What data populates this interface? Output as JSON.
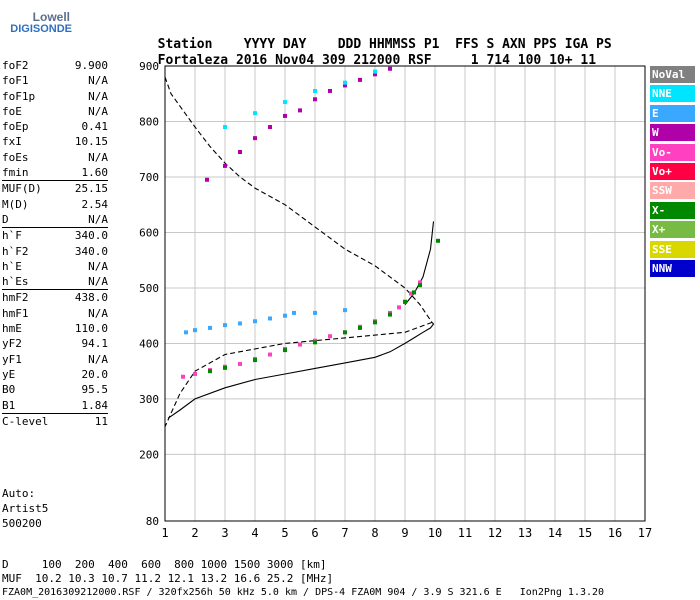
{
  "logo": {
    "line1": "Lowell",
    "line2": "DIGISONDE"
  },
  "header": {
    "labels": [
      "Station",
      "YYYY",
      "DAY",
      "DDD",
      "HHMMSS",
      "P1",
      "FFS",
      "S",
      "AXN",
      "PPS",
      "IGA",
      "PS"
    ],
    "values": [
      "Fortaleza",
      "2016",
      "Nov04",
      "309",
      "212000",
      "RSF",
      "1",
      "714",
      "100",
      "10+",
      "11"
    ]
  },
  "params": [
    {
      "label": "foF2",
      "value": "9.900"
    },
    {
      "label": "foF1",
      "value": "N/A"
    },
    {
      "label": "foF1p",
      "value": "N/A"
    },
    {
      "label": "foE",
      "value": "N/A"
    },
    {
      "label": "foEp",
      "value": "0.41"
    },
    {
      "label": "fxI",
      "value": "10.15"
    },
    {
      "label": "foEs",
      "value": "N/A"
    },
    {
      "label": "fmin",
      "value": "1.60"
    },
    {
      "label": "MUF(D)",
      "value": "25.15"
    },
    {
      "label": "M(D)",
      "value": "2.54"
    },
    {
      "label": "D",
      "value": "N/A"
    },
    {
      "label": "h`F",
      "value": "340.0"
    },
    {
      "label": "h`F2",
      "value": "340.0"
    },
    {
      "label": "h`E",
      "value": "N/A"
    },
    {
      "label": "h`Es",
      "value": "N/A"
    },
    {
      "label": "hmF2",
      "value": "438.0"
    },
    {
      "label": "hmF1",
      "value": "N/A"
    },
    {
      "label": "hmE",
      "value": "110.0"
    },
    {
      "label": "yF2",
      "value": "94.1"
    },
    {
      "label": "yF1",
      "value": "N/A"
    },
    {
      "label": "yE",
      "value": "20.0"
    },
    {
      "label": "B0",
      "value": "95.5"
    },
    {
      "label": "B1",
      "value": "1.84"
    },
    {
      "label": "C-level",
      "value": "11"
    }
  ],
  "auto": {
    "line1": "Auto:",
    "line2": "Artist5",
    "line3": "500200"
  },
  "legend": [
    {
      "label": "NoVal",
      "color": "#808080"
    },
    {
      "label": "NNE",
      "color": "#00e5ff"
    },
    {
      "label": "E",
      "color": "#3aa8ff"
    },
    {
      "label": "W",
      "color": "#b000a8"
    },
    {
      "label": "Vo-",
      "color": "#ff40c0"
    },
    {
      "label": "Vo+",
      "color": "#ff0044"
    },
    {
      "label": "SSW",
      "color": "#ffaaaa"
    },
    {
      "label": "X-",
      "color": "#008800"
    },
    {
      "label": "X+",
      "color": "#77bb44"
    },
    {
      "label": "SSE",
      "color": "#d8d800"
    },
    {
      "label": "NNW",
      "color": "#0000cc"
    }
  ],
  "footer": {
    "line1": "D     100  200  400  600  800 1000 1500 3000 [km]",
    "line2": "MUF  10.2 10.3 10.7 11.2 12.1 13.2 16.6 25.2 [MHz]",
    "line3": "FZA0M_2016309212000.RSF / 320fx256h 50 kHz 5.0 km / DPS-4 FZA0M 904 / 3.9 S 321.6 E   Ion2Png 1.3.20"
  },
  "chart_data": {
    "type": "scatter",
    "xlim": [
      1,
      17
    ],
    "ylim": [
      80,
      900
    ],
    "x_ticks": [
      1,
      2,
      3,
      4,
      5,
      6,
      7,
      8,
      9,
      10,
      11,
      12,
      13,
      14,
      15,
      16,
      17
    ],
    "y_ticks": [
      80,
      200,
      300,
      400,
      500,
      600,
      700,
      800,
      900
    ],
    "grid": true,
    "legend_placement": "right",
    "series": [
      {
        "name": "Vo-",
        "color": "#ff40c0",
        "x": [
          1.6,
          2.0,
          2.5,
          3.0,
          3.5,
          4.0,
          4.5,
          5.0,
          5.5,
          6.0,
          6.5,
          7.0,
          7.5,
          8.0,
          8.5,
          8.8,
          9.0,
          9.2,
          9.5
        ],
        "y": [
          340,
          345,
          352,
          358,
          363,
          372,
          380,
          390,
          398,
          405,
          413,
          420,
          430,
          440,
          455,
          465,
          475,
          490,
          510
        ]
      },
      {
        "name": "X-",
        "color": "#008800",
        "x": [
          2.5,
          3.0,
          4.0,
          5.0,
          6.0,
          7.0,
          7.5,
          8.0,
          8.5,
          9.0,
          9.3,
          9.5,
          10.1
        ],
        "y": [
          350,
          356,
          370,
          388,
          402,
          420,
          428,
          438,
          452,
          475,
          492,
          505,
          585
        ]
      },
      {
        "name": "E",
        "color": "#3aa8ff",
        "x": [
          1.7,
          2.0,
          2.5,
          3.0,
          3.5,
          4.0,
          4.5,
          5.0,
          5.3,
          6.0,
          7.0
        ],
        "y": [
          420,
          424,
          428,
          433,
          436,
          440,
          445,
          450,
          455,
          455,
          460
        ]
      },
      {
        "name": "W",
        "color": "#b000a8",
        "x": [
          2.4,
          3.0,
          3.5,
          4.0,
          4.5,
          5.0,
          5.5,
          6.0,
          6.5,
          7.0,
          7.5,
          8.0,
          8.5
        ],
        "y": [
          695,
          720,
          745,
          770,
          790,
          810,
          820,
          840,
          855,
          865,
          875,
          885,
          895
        ]
      },
      {
        "name": "NNE",
        "color": "#00e5ff",
        "x": [
          3.0,
          4.0,
          5.0,
          6.0,
          7.0,
          8.0
        ],
        "y": [
          790,
          815,
          835,
          855,
          870,
          890
        ]
      }
    ],
    "traces": [
      {
        "style": "solid",
        "x": [
          1.1,
          1.5,
          2.0,
          3.0,
          4.0,
          5.0,
          6.0,
          7.0,
          8.0,
          8.5,
          9.0,
          9.3,
          9.6,
          9.85,
          9.95,
          9.9
        ],
        "y": [
          265,
          280,
          300,
          320,
          335,
          345,
          355,
          365,
          375,
          385,
          400,
          410,
          420,
          428,
          435,
          438
        ]
      },
      {
        "style": "dashed",
        "x": [
          1.0,
          1.2,
          1.6,
          2.0,
          2.5,
          3.0,
          3.5,
          4.0,
          5.0,
          6.0,
          7.0,
          8.0,
          8.5,
          9.0,
          9.5,
          9.9
        ],
        "y": [
          880,
          850,
          820,
          790,
          755,
          725,
          700,
          680,
          650,
          610,
          570,
          540,
          520,
          500,
          470,
          438
        ]
      },
      {
        "style": "dashed",
        "x": [
          9.9,
          9.0,
          7.0,
          5.0,
          3.0,
          2.0,
          1.5,
          1.0
        ],
        "y": [
          438,
          420,
          410,
          400,
          380,
          350,
          310,
          250
        ]
      },
      {
        "style": "solid",
        "x": [
          9.0,
          9.3,
          9.6,
          9.85,
          9.95
        ],
        "y": [
          470,
          490,
          520,
          570,
          620
        ]
      }
    ]
  }
}
